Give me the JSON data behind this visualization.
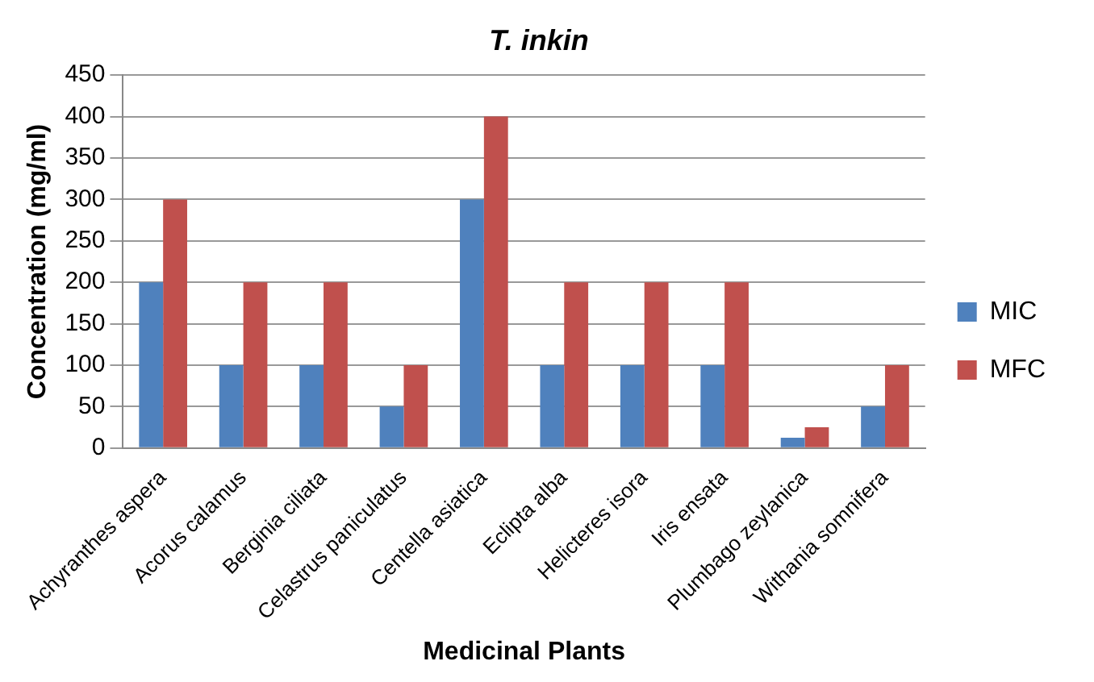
{
  "chart_data": {
    "type": "bar",
    "title": "T. inkin",
    "xlabel": "Medicinal Plants",
    "ylabel": "Concentration (mg/ml)",
    "categories": [
      "Achyranthes aspera",
      "Acorus calamus",
      "Berginia ciliata",
      "Celastrus paniculatus",
      "Centella asiatica",
      "Eclipta alba",
      "Helicteres isora",
      "Iris ensata",
      "Plumbago zeylanica",
      "Withania somnifera"
    ],
    "series": [
      {
        "name": "MIC",
        "color": "#4f81bd",
        "values": [
          200,
          100,
          100,
          50,
          300,
          100,
          100,
          100,
          12.5,
          50
        ]
      },
      {
        "name": "MFC",
        "color": "#c0504d",
        "values": [
          300,
          200,
          200,
          100,
          400,
          200,
          200,
          200,
          25,
          100
        ]
      }
    ],
    "ylim": [
      0,
      450
    ],
    "yticks": [
      0,
      50,
      100,
      150,
      200,
      250,
      300,
      350,
      400,
      450
    ],
    "grid": "y",
    "legend": "right"
  }
}
